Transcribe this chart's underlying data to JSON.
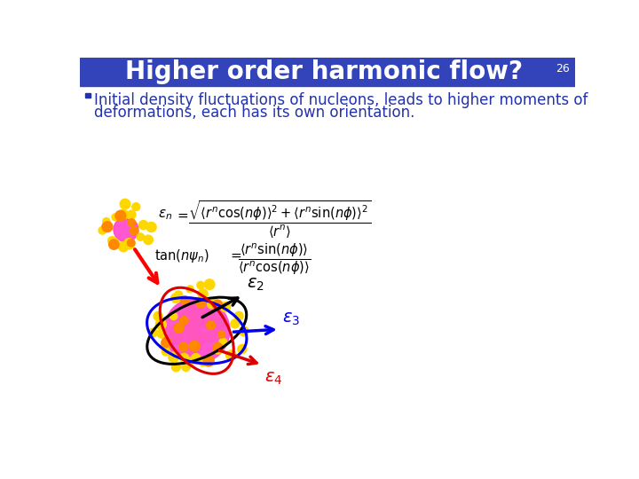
{
  "title": "Higher order harmonic flow?",
  "title_color": "#FFFFFF",
  "title_bg_color": "#3344BB",
  "slide_number": "26",
  "slide_bg_color": "#FFFFFF",
  "bullet_line1": "Initial density fluctuations of nucleons, leads to higher moments of",
  "bullet_line2": "deformations, each has its own orientation.",
  "bullet_color": "#2233AA",
  "color_eps2": "#000000",
  "color_eps3": "#0000EE",
  "color_eps4": "#DD0000",
  "nucleon_yellow": "#FFD700",
  "nucleon_orange": "#FF8800",
  "nucleon_pink": "#FF44CC",
  "nucleon_magenta": "#EE00EE",
  "title_fontsize": 20,
  "bullet_fontsize": 12
}
